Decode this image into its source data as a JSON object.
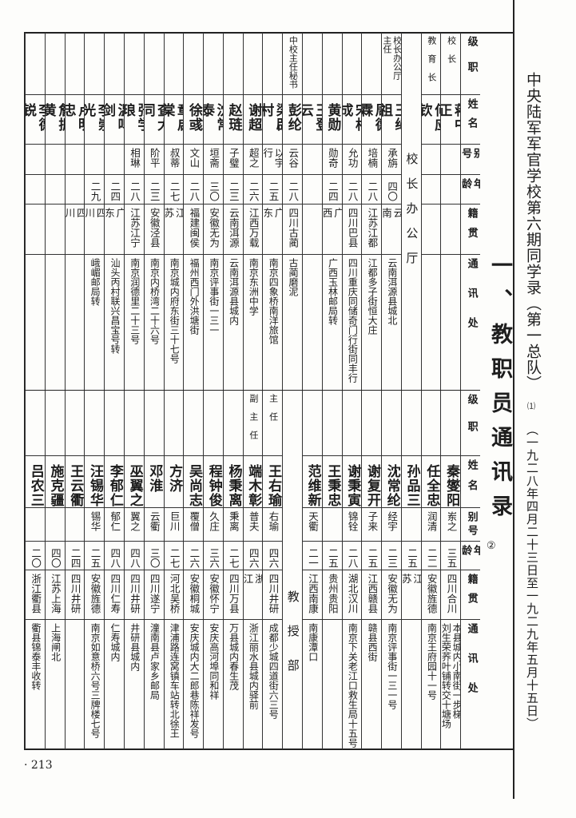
{
  "book": {
    "title": "中央陆军军官学校第六期同学录（第一总队）",
    "title_mark": "⑴",
    "dates": "（一九二八年四月二十三日至一九二九年五月十五日）"
  },
  "heading": {
    "text": "一、教职员通讯录",
    "mark": "②"
  },
  "page_number": "· 213",
  "columns_header": [
    "级职",
    "姓名",
    "别号",
    "年龄",
    "籍贯",
    "通讯处"
  ],
  "top_table": {
    "columns": [
      {
        "title": "校长",
        "name": "蒋中正",
        "alias": "",
        "age": "",
        "native": "",
        "address": ""
      },
      {
        "title": "教育长",
        "name": "何应钦",
        "alias": "",
        "age": "",
        "native": "",
        "address": ""
      },
      {
        "section": "校长办公厅"
      },
      {
        "title": "校长办公厅\n主任",
        "name": "王绳祖",
        "alias": "承旃",
        "age": "四〇",
        "native": "云南",
        "address": "云南洱源县城北"
      },
      {
        "title": "",
        "name": "周德霖",
        "alias": "培楠",
        "age": "二八",
        "native": "江苏江都",
        "address": "江都多子街恒大庄"
      },
      {
        "title": "",
        "name": "宋相成",
        "alias": "允功",
        "age": "二八",
        "native": "四川巴县",
        "address": "四川重庆同储奇门行街同丰行"
      },
      {
        "title": "",
        "name": "黄勋",
        "alias": "勋奇",
        "age": "二四",
        "native": "广西",
        "address": "广西玉林邮局转"
      },
      {
        "title": "",
        "name": "王登云",
        "alias": "",
        "age": "",
        "native": "",
        "address": ""
      },
      {
        "title": "中校主任秘书",
        "name": "彭纶",
        "alias": "云谷",
        "age": "二八",
        "native": "四川古蔺",
        "address": "古蔺磨泥"
      },
      {
        "title": "",
        "name": "梁辟村",
        "alias": "以宇行",
        "age": "二五",
        "native": "广东",
        "address": "南京四象桥南洋旅馆"
      },
      {
        "title": "",
        "name": "谢超",
        "alias": "超之",
        "age": "二六",
        "native": "江西万载",
        "address": "南京东洲中学"
      },
      {
        "title": "",
        "name": "赵琏",
        "alias": "子璧",
        "age": "二三",
        "native": "云南洱源",
        "address": "云南洱源县城内"
      },
      {
        "title": "",
        "name": "沈常泰",
        "alias": "垣斋",
        "age": "三〇",
        "native": "安徽无为",
        "address": "南京评事街一三一"
      },
      {
        "title": "",
        "name": "徐彧",
        "alias": "文山",
        "age": "二八",
        "native": "福建闽侯",
        "address": "福州西门外洪塘街"
      },
      {
        "title": "",
        "name": "章启棠",
        "alias": "叔蒂",
        "age": "二七",
        "native": "江苏",
        "address": "南京城内府东街三十七号"
      },
      {
        "title": "",
        "name": "查大同",
        "alias": "阶平",
        "age": "二三",
        "native": "安徽泾县",
        "address": "南京内桥湾二十六号"
      },
      {
        "title": "",
        "name": "张学琅",
        "alias": "相琳",
        "age": "二八",
        "native": "江苏江宁",
        "address": "南京润德里二十三号"
      },
      {
        "title": "",
        "name": "温鸣剑",
        "alias": "",
        "age": "二四",
        "native": "广东",
        "address": "汕头丙村联兴昌宝号转"
      },
      {
        "title": "",
        "name": "李崇光",
        "alias": "",
        "age": "二九",
        "native": "四川",
        "address": "峨嵋邮局转"
      },
      {
        "title": "",
        "name": "卢明忠",
        "alias": "",
        "age": "",
        "native": "四川",
        "address": ""
      },
      {
        "title": "",
        "name": "詹振黄",
        "alias": "",
        "age": "",
        "native": "",
        "address": ""
      },
      {
        "title": "",
        "name": "李德锐",
        "alias": "",
        "age": "",
        "native": "",
        "address": ""
      }
    ]
  },
  "bottom_table": {
    "columns": [
      {
        "title": "",
        "name": "秦燮阳",
        "alias": "岽之",
        "age": "三五",
        "native": "四川合川",
        "address": "本县城内小南街一步梯\n刘生荣荞叶铺转交十塘场"
      },
      {
        "title": "",
        "name": "任全忠",
        "alias": "润清",
        "age": "二二",
        "native": "安徽旌德",
        "address": "南京王府园十一号"
      },
      {
        "title": "",
        "name": "孙品三",
        "alias": "",
        "age": "二五",
        "native": "江苏",
        "address": ""
      },
      {
        "title": "",
        "name": "沈常纶",
        "alias": "经宇",
        "age": "二三",
        "native": "安徽无为",
        "address": "南京评事街一三一号"
      },
      {
        "title": "",
        "name": "谢复开",
        "alias": "子来",
        "age": "二五",
        "native": "江西赣县",
        "address": "赣县西街"
      },
      {
        "title": "",
        "name": "谢秉寅",
        "alias": "锦铨",
        "age": "二八",
        "native": "湖北汉川",
        "address": "南京下关老江口救生局十五号"
      },
      {
        "title": "",
        "name": "王秉忠",
        "alias": "",
        "age": "二五",
        "native": "贵州贵阳",
        "address": ""
      },
      {
        "title": "",
        "name": "范维新",
        "alias": "天衢",
        "age": "二一",
        "native": "江西南康",
        "address": "南康潭口"
      },
      {
        "section": "教授部"
      },
      {
        "title": "主任",
        "name": "王右瑜",
        "alias": "右瑜",
        "age": "四六",
        "native": "四川井研",
        "address": "成都少城四道街六三号"
      },
      {
        "title": "副主任",
        "name": "端木彰",
        "alias": "普夫",
        "age": "四六",
        "native": "浙江",
        "address": "浙江丽水县城内驿前"
      },
      {
        "title": "",
        "name": "杨秉离",
        "alias": "秉离",
        "age": "二七",
        "native": "四川万县",
        "address": "万县城内春生茂"
      },
      {
        "title": "",
        "name": "程钟俊",
        "alias": "久庄",
        "age": "三六",
        "native": "安徽怀宁",
        "address": "安庆高河埠同和祥"
      },
      {
        "title": "",
        "name": "吴尚志",
        "alias": "覆僧",
        "age": "二六",
        "native": "安徽桐城",
        "address": "安庆城内大二郎巷陈祥发号"
      },
      {
        "title": "",
        "name": "方济",
        "alias": "巨川",
        "age": "二七",
        "native": "河北吴桥",
        "address": "津浦路连窝镇车站转北徐王"
      },
      {
        "title": "",
        "name": "邓淮",
        "alias": "云衢",
        "age": "三〇",
        "native": "四川遂宁",
        "address": "潼南县卢家乡邮局"
      },
      {
        "title": "",
        "name": "巫翼之",
        "alias": "翼之",
        "age": "四八",
        "native": "四川井研",
        "address": "井研县城内"
      },
      {
        "title": "",
        "name": "李郁仁",
        "alias": "郁仁",
        "age": "四八",
        "native": "四川仁寿",
        "address": "仁寿城内"
      },
      {
        "title": "",
        "name": "汪锡华",
        "alias": "锡华",
        "age": "二五",
        "native": "安徽旌德",
        "address": "南京如意桥六号三牌楼七号"
      },
      {
        "title": "",
        "name": "王云衢",
        "alias": "",
        "age": "二四",
        "native": "四川井研",
        "address": ""
      },
      {
        "title": "",
        "name": "施克疆",
        "alias": "",
        "age": "四〇",
        "native": "江苏上海",
        "address": "上海闸北"
      },
      {
        "title": "",
        "name": "吕农三",
        "alias": "",
        "age": "二〇",
        "native": "浙江衢县",
        "address": "衢县锦泰丰收转"
      }
    ]
  }
}
